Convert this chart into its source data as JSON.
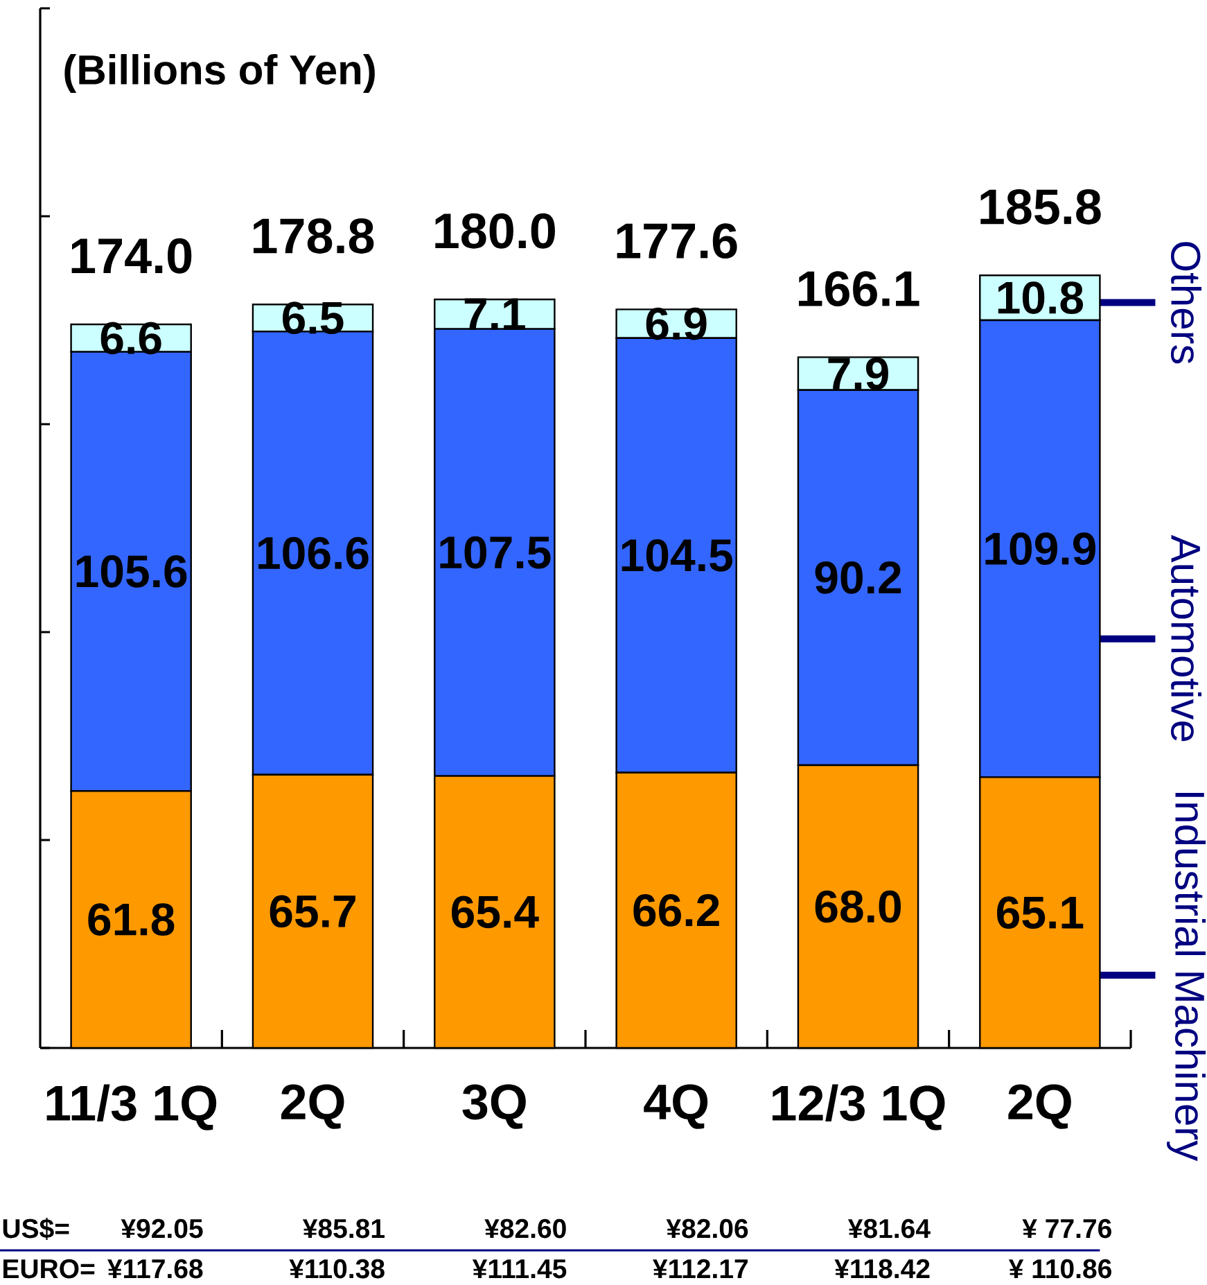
{
  "chart_data": {
    "type": "bar",
    "stacked": true,
    "ylabel": "(Billions of Yen)",
    "categories": [
      "11/3 1Q",
      "2Q",
      "3Q",
      "4Q",
      "12/3 1Q",
      "2Q"
    ],
    "series": [
      {
        "name": "Industrial Machinery",
        "color": "#ff9900",
        "values": [
          61.8,
          65.7,
          65.4,
          66.2,
          68.0,
          65.1
        ],
        "value_labels": [
          "61.8",
          "65.7",
          "65.4",
          "66.2",
          "68.0",
          "65.1"
        ]
      },
      {
        "name": "Automotive",
        "color": "#3366ff",
        "values": [
          105.6,
          106.6,
          107.5,
          104.5,
          90.2,
          109.9
        ],
        "value_labels": [
          "105.6",
          "106.6",
          "107.5",
          "104.5",
          "90.2",
          "109.9"
        ]
      },
      {
        "name": "Others",
        "color": "#ccffff",
        "values": [
          6.6,
          6.5,
          7.1,
          6.9,
          7.9,
          10.8
        ],
        "value_labels": [
          "6.6",
          "6.5",
          "7.1",
          "6.9",
          "7.9",
          "10.8"
        ]
      }
    ],
    "totals": [
      "174.0",
      "178.8",
      "180.0",
      "177.6",
      "166.1",
      "185.8"
    ],
    "ylim": [
      0,
      250
    ],
    "yticks": [
      {
        "value": 0,
        "label": null
      },
      {
        "value": 50,
        "label": null
      },
      {
        "value": 100,
        "label": null
      },
      {
        "value": 150,
        "label": null
      },
      {
        "value": 200,
        "label": null
      },
      {
        "value": 250,
        "label": null
      }
    ],
    "tick_labels": "x",
    "annotations": [
      "US$=",
      "¥92.05",
      "¥85.81",
      "¥82.60",
      "¥82.06",
      "¥81.64",
      "¥ 77.76",
      "EURO=",
      "¥117.68",
      "¥110.38",
      "¥111.45",
      "¥112.17",
      "¥118.42",
      "¥ 110.86"
    ]
  }
}
